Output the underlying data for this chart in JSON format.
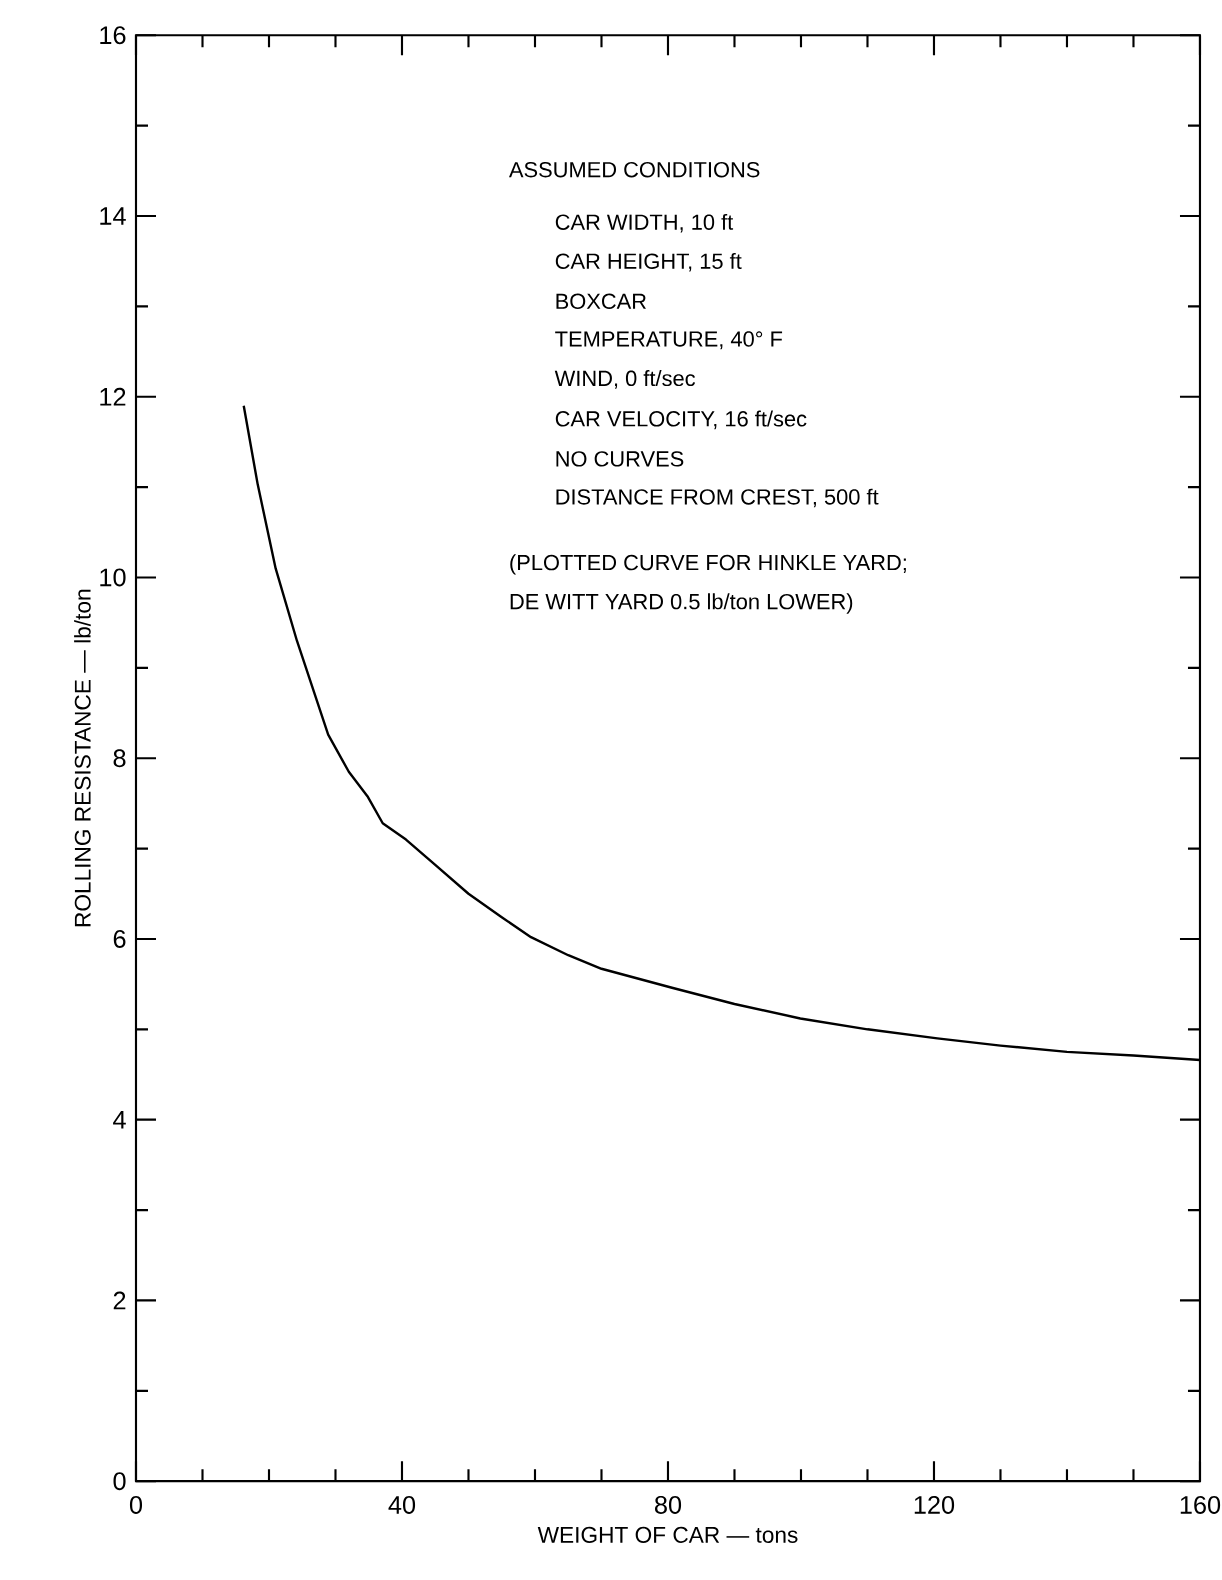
{
  "chart_data": {
    "type": "line",
    "xlabel": "WEIGHT OF CAR — tons",
    "ylabel": "ROLLING RESISTANCE — lb/ton",
    "annotations": [
      "ASSUMED CONDITIONS",
      "CAR WIDTH, 10 ft",
      "CAR HEIGHT, 15 ft",
      "BOXCAR",
      "TEMPERATURE, 40° F",
      "WIND, 0 ft/sec",
      "CAR VELOCITY, 16 ft/sec",
      "NO CURVES",
      "DISTANCE FROM CREST, 500 ft",
      "(PLOTTED CURVE FOR HINKLE YARD;",
      "DE WITT YARD 0.5 lb/ton LOWER)"
    ],
    "x": [
      16.2,
      18.3,
      21,
      24.2,
      28.9,
      32,
      34.8,
      37.1,
      40.6,
      45,
      50,
      55,
      59.4,
      65,
      70,
      80.6,
      90,
      99.9,
      110,
      120.5,
      130,
      140,
      150,
      160
    ],
    "series": [
      {
        "color": "#000000",
        "values": [
          11.9,
          11.03,
          10.1,
          9.3,
          8.26,
          7.85,
          7.58,
          7.28,
          7.1,
          6.82,
          6.5,
          6.24,
          6.02,
          5.82,
          5.67,
          5.46,
          5.28,
          5.12,
          5.0,
          4.9,
          4.82,
          4.75,
          4.71,
          4.66
        ]
      }
    ],
    "xlim": [
      0,
      160
    ],
    "ylim": [
      0,
      16
    ],
    "xticks": [
      0,
      40,
      80,
      120,
      160
    ],
    "yticks": [
      0,
      2,
      4,
      6,
      8,
      10,
      12,
      14,
      16
    ],
    "marker": "none",
    "line_style": "solid"
  }
}
